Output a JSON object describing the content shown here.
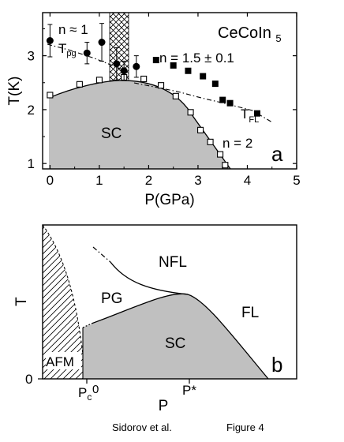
{
  "chart_data": [
    {
      "panel": "a",
      "type": "scatter",
      "title": "CeCoIn5",
      "xlabel": "P(GPa)",
      "ylabel": "T(K)",
      "xlim": [
        -0.15,
        5
      ],
      "ylim": [
        0.9,
        3.8
      ],
      "xticks": [
        0,
        1,
        2,
        3,
        4,
        5
      ],
      "yticks": [
        1,
        2,
        3
      ],
      "panel_label": "a",
      "annotations": {
        "n1": "n ≈ 1",
        "n15": "n = 1.5 ± 0.1",
        "n2": "n = 2",
        "sc": "SC",
        "tpg": [
          "T",
          "pg"
        ],
        "tfl": [
          "T",
          "FL"
        ]
      },
      "series": [
        {
          "name": "SC",
          "marker": "open-square",
          "points": [
            [
              0,
              2.27
            ],
            [
              0.6,
              2.47
            ],
            [
              1.0,
              2.55
            ],
            [
              1.5,
              2.6
            ],
            [
              1.9,
              2.57
            ],
            [
              2.25,
              2.45
            ],
            [
              2.55,
              2.25
            ],
            [
              2.85,
              1.95
            ],
            [
              3.05,
              1.62
            ],
            [
              3.25,
              1.4
            ],
            [
              3.45,
              1.17
            ],
            [
              3.55,
              0.97
            ]
          ]
        },
        {
          "name": "T_pg",
          "marker": "filled-circle",
          "points": [
            [
              0,
              3.28,
              0.3
            ],
            [
              0.75,
              3.05,
              0.2
            ],
            [
              1.05,
              3.25,
              0.35
            ],
            [
              1.35,
              2.85,
              0.3
            ],
            [
              1.5,
              2.72,
              0.18
            ],
            [
              1.75,
              2.8,
              0.2
            ]
          ]
        },
        {
          "name": "T_FL",
          "marker": "filled-square",
          "points": [
            [
              2.15,
              2.92
            ],
            [
              2.5,
              2.82
            ],
            [
              2.8,
              2.72
            ],
            [
              3.1,
              2.62
            ],
            [
              3.35,
              2.48
            ],
            [
              3.5,
              2.18
            ],
            [
              3.65,
              2.12
            ],
            [
              4.2,
              1.93
            ]
          ]
        }
      ]
    },
    {
      "panel": "b",
      "type": "diagram",
      "xlabel": "P",
      "ylabel": "T",
      "xtick_labels": {
        "pc": [
          "P",
          "c"
        ],
        "zero": "0",
        "pstar": "P*"
      },
      "ytick_label": "0",
      "regions": [
        "NFL",
        "PG",
        "FL",
        "SC",
        "AFM"
      ],
      "panel_label": "b"
    }
  ],
  "footer": {
    "left": "Sidorov et al.",
    "right": "Figure 4"
  },
  "colors": {
    "sc_fill": "#c0c0c0",
    "ink": "#000000"
  }
}
